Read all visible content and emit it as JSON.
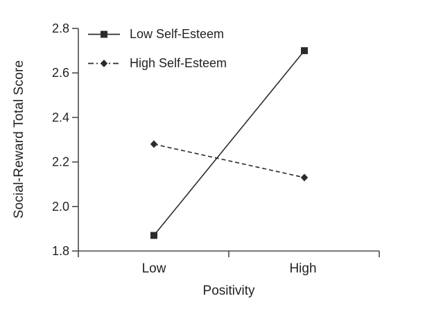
{
  "chart_data": {
    "type": "line",
    "categories": [
      "Low",
      "High"
    ],
    "series": [
      {
        "name": "Low Self-Esteem",
        "values": [
          1.87,
          2.7
        ],
        "line_style": "solid",
        "marker": "square",
        "color": "#2b2b2b"
      },
      {
        "name": "High Self-Esteem",
        "values": [
          2.28,
          2.13
        ],
        "line_style": "dashed",
        "marker": "diamond",
        "color": "#2b2b2b"
      }
    ],
    "title": "",
    "xlabel": "Positivity",
    "ylabel": "Social-Reward Total Score",
    "ylim": [
      1.8,
      2.8
    ],
    "yticks": [
      1.8,
      2.0,
      2.2,
      2.4,
      2.6,
      2.8
    ],
    "grid": false,
    "legend_position": "top-left",
    "axis_color": "#4a4a4a",
    "text_color": "#231f20",
    "background": "#ffffff"
  }
}
